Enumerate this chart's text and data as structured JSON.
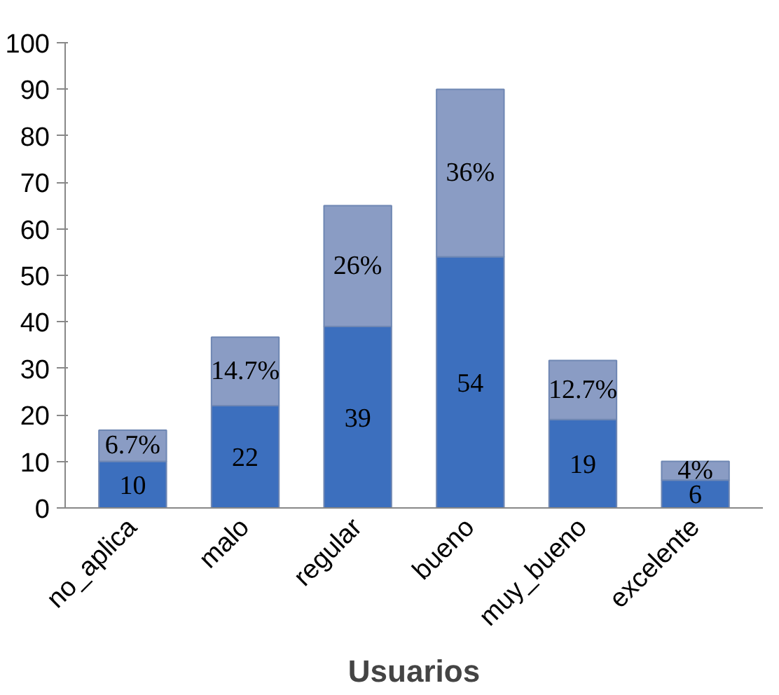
{
  "chart_data": {
    "type": "bar",
    "stacked": true,
    "xlabel": "Usuarios",
    "categories": [
      "no_aplica",
      "malo",
      "regular",
      "bueno",
      "muy_bueno",
      "excelente"
    ],
    "series": [
      {
        "color": "#3c6fbe",
        "values": [
          10,
          22,
          39,
          54,
          19,
          6
        ],
        "value_labels": [
          "10",
          "22",
          "39",
          "54",
          "19",
          "6"
        ]
      },
      {
        "color": "#8a9cc4",
        "values": [
          6.7,
          14.7,
          26,
          36,
          12.7,
          4
        ],
        "value_labels": [
          "6.7%",
          "14.7%",
          "26%",
          "36%",
          "12.7%",
          "4%"
        ]
      }
    ],
    "ylim": [
      0,
      100
    ],
    "yticks": [
      0,
      10,
      20,
      30,
      40,
      50,
      60,
      70,
      80,
      90,
      100
    ],
    "grid": false
  }
}
